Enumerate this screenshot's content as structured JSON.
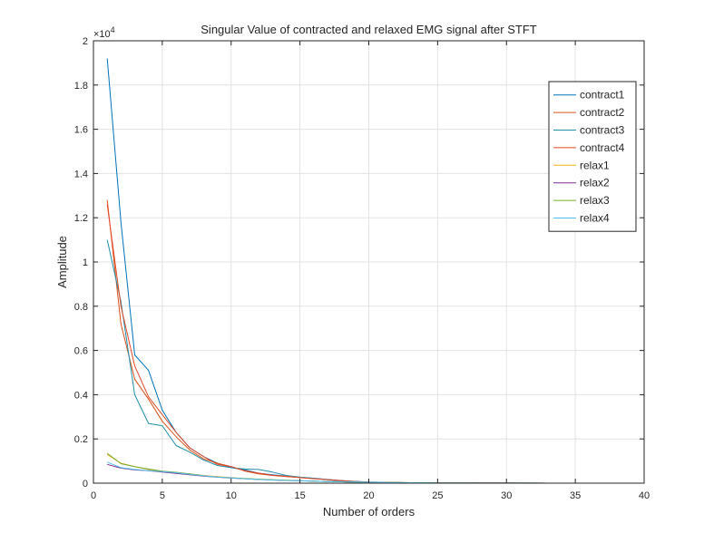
{
  "chart_data": {
    "type": "line",
    "title": "Singular Value of contracted and relaxed EMG signal after STFT",
    "xlabel": "Number of orders",
    "ylabel": "Amplitude",
    "exponent_label": "×10",
    "exponent_power": "4",
    "xlim": [
      0,
      40
    ],
    "ylim": [
      0,
      20000
    ],
    "xticks": [
      0,
      5,
      10,
      15,
      20,
      25,
      30,
      35,
      40
    ],
    "yticks": [
      0,
      2000,
      4000,
      6000,
      8000,
      10000,
      12000,
      14000,
      16000,
      18000,
      20000
    ],
    "ytick_labels": [
      "0",
      "0.2",
      "0.4",
      "0.6",
      "0.8",
      "1",
      "1.2",
      "1.4",
      "1.6",
      "1.8",
      "2"
    ],
    "grid": true,
    "legend_position": "top-right",
    "x": [
      1,
      2,
      3,
      4,
      5,
      6,
      7,
      8,
      9,
      10,
      11,
      12,
      13,
      14,
      15,
      16,
      17,
      18,
      19,
      20,
      21,
      22,
      23,
      24,
      25,
      26,
      27,
      28,
      29,
      30,
      31,
      32,
      33,
      34,
      35,
      36,
      37,
      38,
      39,
      40
    ],
    "series": [
      {
        "name": "contract1",
        "color": "#0072BD",
        "values": [
          19200,
          11800,
          5800,
          5100,
          3300,
          2300,
          1600,
          1200,
          900,
          700,
          600,
          450,
          380,
          320,
          270,
          220,
          170,
          120,
          80,
          50,
          40,
          30,
          20,
          15,
          10,
          8,
          6,
          5,
          4,
          3,
          3,
          2,
          2,
          2,
          1,
          1,
          1,
          1,
          1,
          1
        ]
      },
      {
        "name": "contract2",
        "color": "#D95319",
        "values": [
          12800,
          7200,
          4700,
          3800,
          2800,
          2100,
          1500,
          1100,
          900,
          750,
          550,
          420,
          350,
          300,
          260,
          210,
          160,
          110,
          70,
          45,
          35,
          25,
          18,
          12,
          9,
          7,
          5,
          4,
          3,
          3,
          2,
          2,
          2,
          1,
          1,
          1,
          1,
          1,
          1,
          1
        ]
      },
      {
        "name": "contract3",
        "color": "#1F8FA8",
        "values": [
          11000,
          8200,
          4000,
          2700,
          2600,
          1700,
          1400,
          1050,
          800,
          700,
          640,
          620,
          500,
          350,
          270,
          220,
          160,
          100,
          60,
          40,
          30,
          20,
          15,
          10,
          8,
          6,
          5,
          4,
          3,
          3,
          2,
          2,
          2,
          1,
          1,
          1,
          1,
          1,
          1,
          1
        ]
      },
      {
        "name": "contract4",
        "color": "#E2482A",
        "values": [
          12600,
          8000,
          5300,
          3900,
          3100,
          2300,
          1600,
          1200,
          850,
          750,
          560,
          450,
          360,
          310,
          250,
          200,
          160,
          110,
          70,
          50,
          35,
          25,
          18,
          12,
          9,
          7,
          5,
          4,
          3,
          3,
          2,
          2,
          2,
          1,
          1,
          1,
          1,
          1,
          1,
          1
        ]
      },
      {
        "name": "relax1",
        "color": "#EDB120",
        "values": [
          1300,
          900,
          750,
          620,
          520,
          470,
          420,
          350,
          300,
          250,
          210,
          180,
          150,
          130,
          110,
          90,
          75,
          60,
          50,
          40,
          32,
          25,
          20,
          15,
          12,
          10,
          8,
          6,
          5,
          4,
          3,
          3,
          2,
          2,
          2,
          1,
          1,
          1,
          1,
          1
        ]
      },
      {
        "name": "relax2",
        "color": "#7E2F8E",
        "values": [
          850,
          680,
          600,
          560,
          500,
          440,
          380,
          320,
          270,
          230,
          200,
          170,
          145,
          125,
          105,
          90,
          75,
          60,
          50,
          40,
          32,
          25,
          20,
          15,
          12,
          10,
          8,
          6,
          5,
          4,
          3,
          3,
          2,
          2,
          2,
          1,
          1,
          1,
          1,
          1
        ]
      },
      {
        "name": "relax3",
        "color": "#77AC30",
        "values": [
          1350,
          880,
          740,
          640,
          540,
          490,
          420,
          340,
          280,
          240,
          210,
          180,
          150,
          130,
          110,
          90,
          75,
          60,
          50,
          40,
          32,
          25,
          20,
          15,
          12,
          10,
          8,
          6,
          5,
          4,
          3,
          3,
          2,
          2,
          2,
          1,
          1,
          1,
          1,
          1
        ]
      },
      {
        "name": "relax4",
        "color": "#4DBEEE",
        "values": [
          950,
          700,
          620,
          560,
          520,
          470,
          400,
          330,
          280,
          240,
          200,
          170,
          145,
          125,
          105,
          90,
          75,
          60,
          50,
          40,
          32,
          25,
          20,
          15,
          12,
          10,
          8,
          6,
          5,
          4,
          3,
          3,
          2,
          2,
          2,
          1,
          1,
          1,
          1,
          1
        ]
      }
    ]
  }
}
